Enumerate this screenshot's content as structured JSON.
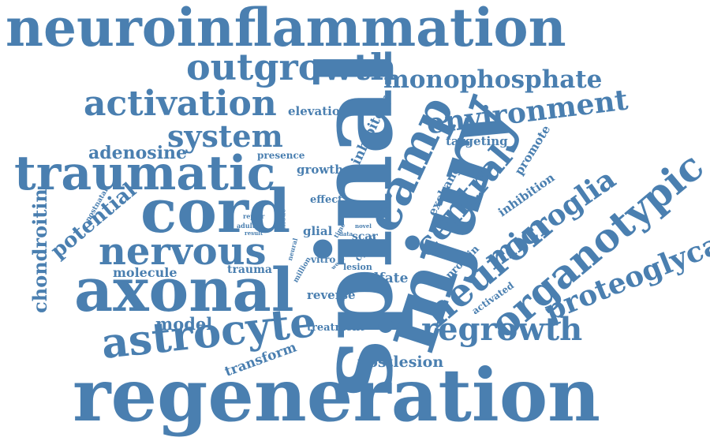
{
  "cloud": {
    "color": "#4a7fb0",
    "background": "#ffffff",
    "words": [
      {
        "text": "neuroinflammation"
      },
      {
        "text": "outgrowth"
      },
      {
        "text": "monophosphate"
      },
      {
        "text": "activation"
      },
      {
        "text": "environment"
      },
      {
        "text": "system"
      },
      {
        "text": "elevation"
      },
      {
        "text": "adenosine"
      },
      {
        "text": "presence"
      },
      {
        "text": "targeting"
      },
      {
        "text": "traumatic"
      },
      {
        "text": "growth"
      },
      {
        "text": "inhibitory"
      },
      {
        "text": "promote"
      },
      {
        "text": "cord"
      },
      {
        "text": "effect"
      },
      {
        "text": "exchange"
      },
      {
        "text": "inhibition"
      },
      {
        "text": "potential"
      },
      {
        "text": "postnatal"
      },
      {
        "text": "repair"
      },
      {
        "text": "adult"
      },
      {
        "text": "result"
      },
      {
        "text": "tissue"
      },
      {
        "text": "glial"
      },
      {
        "text": "time"
      },
      {
        "text": "data"
      },
      {
        "text": "novel"
      },
      {
        "text": "scar"
      },
      {
        "text": "chondroitin"
      },
      {
        "text": "nervous"
      },
      {
        "text": "neural"
      },
      {
        "text": "vitro"
      },
      {
        "text": "week"
      },
      {
        "text": "cyclic"
      },
      {
        "text": "lesion"
      },
      {
        "text": "million"
      },
      {
        "text": "molecule"
      },
      {
        "text": "trauma"
      },
      {
        "text": "sulfate"
      },
      {
        "text": "axonal"
      },
      {
        "text": "reverse"
      },
      {
        "text": "protein"
      },
      {
        "text": "activated"
      },
      {
        "text": "model"
      },
      {
        "text": "treatment"
      },
      {
        "text": "astrocyte"
      },
      {
        "text": "regrowth"
      },
      {
        "text": "transform"
      },
      {
        "text": "postlesion"
      },
      {
        "text": "regeneration"
      },
      {
        "text": "spinal"
      },
      {
        "text": "injury"
      },
      {
        "text": "camp"
      },
      {
        "text": "central"
      },
      {
        "text": "neuron"
      },
      {
        "text": "microglia"
      },
      {
        "text": "organotypic"
      },
      {
        "text": "proteoglycans"
      }
    ]
  }
}
